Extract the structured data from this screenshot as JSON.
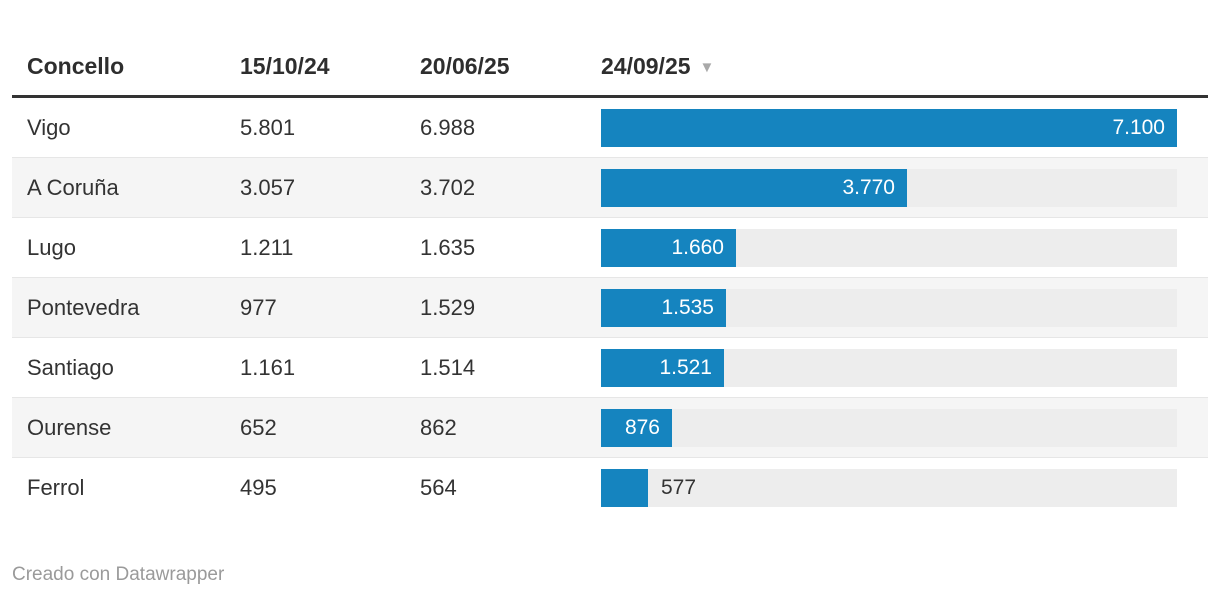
{
  "table": {
    "columns": [
      {
        "label": "Concello"
      },
      {
        "label": "15/10/24"
      },
      {
        "label": "20/06/25"
      },
      {
        "label": "24/09/25",
        "sorted": true,
        "sort_direction": "desc"
      }
    ],
    "sort_icon": "▼",
    "bar_max": 7100,
    "rows": [
      {
        "name": "Vigo",
        "v1": "5.801",
        "v2": "6.988",
        "v3": "7.100",
        "bar": 7100,
        "label_inside": true
      },
      {
        "name": "A Coruña",
        "v1": "3.057",
        "v2": "3.702",
        "v3": "3.770",
        "bar": 3770,
        "label_inside": true
      },
      {
        "name": "Lugo",
        "v1": "1.211",
        "v2": "1.635",
        "v3": "1.660",
        "bar": 1660,
        "label_inside": true
      },
      {
        "name": "Pontevedra",
        "v1": "977",
        "v2": "1.529",
        "v3": "1.535",
        "bar": 1535,
        "label_inside": true
      },
      {
        "name": "Santiago",
        "v1": "1.161",
        "v2": "1.514",
        "v3": "1.521",
        "bar": 1521,
        "label_inside": true
      },
      {
        "name": "Ourense",
        "v1": "652",
        "v2": "862",
        "v3": "876",
        "bar": 876,
        "label_inside": true
      },
      {
        "name": "Ferrol",
        "v1": "495",
        "v2": "564",
        "v3": "577",
        "bar": 577,
        "label_inside": false
      }
    ]
  },
  "colors": {
    "bar": "#1584bf",
    "track": "#ededed",
    "alt_row_bg": "#f5f5f5",
    "header_border": "#333333",
    "text": "#333333",
    "footer_text": "#9a9a9a"
  },
  "footer": {
    "credit": "Creado con Datawrapper"
  },
  "chart_data": {
    "type": "table",
    "title": "",
    "columns": [
      "Concello",
      "15/10/24",
      "20/06/25",
      "24/09/25"
    ],
    "rows": [
      [
        "Vigo",
        5801,
        6988,
        7100
      ],
      [
        "A Coruña",
        3057,
        3702,
        3770
      ],
      [
        "Lugo",
        1211,
        1635,
        1660
      ],
      [
        "Pontevedra",
        977,
        1529,
        1535
      ],
      [
        "Santiago",
        1161,
        1514,
        1521
      ],
      [
        "Ourense",
        652,
        862,
        876
      ],
      [
        "Ferrol",
        495,
        564,
        577
      ]
    ],
    "last_column_rendered_as": "bar",
    "bar_range": [
      0,
      7100
    ],
    "sorted_by": "24/09/25",
    "sort_direction": "desc",
    "credit": "Creado con Datawrapper"
  }
}
